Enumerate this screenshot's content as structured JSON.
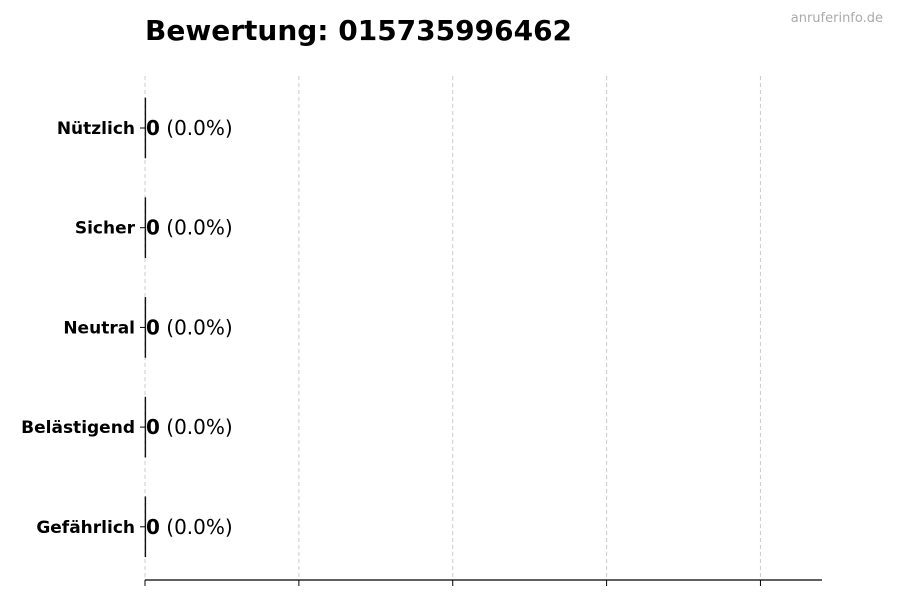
{
  "watermark": "anruferinfo.de",
  "chart_data": {
    "type": "bar",
    "orientation": "horizontal",
    "title": "Bewertung: 015735996462",
    "categories": [
      "Nützlich",
      "Sicher",
      "Neutral",
      "Belästigend",
      "Gefährlich"
    ],
    "values": [
      0,
      0,
      0,
      0,
      0
    ],
    "labels": [
      {
        "count": "0",
        "pct": "(0.0%)"
      },
      {
        "count": "0",
        "pct": "(0.0%)"
      },
      {
        "count": "0",
        "pct": "(0.0%)"
      },
      {
        "count": "0",
        "pct": "(0.0%)"
      },
      {
        "count": "0",
        "pct": "(0.0%)"
      }
    ],
    "xlabel": "",
    "ylabel": "",
    "xlim": [
      0,
      4.4
    ],
    "xticks": [
      0,
      1,
      2,
      3,
      4
    ],
    "grid": "x, dashed",
    "colors": {
      "bar_edge": "#000000",
      "grid": "#cccccc",
      "watermark": "#aaaaaa"
    }
  }
}
